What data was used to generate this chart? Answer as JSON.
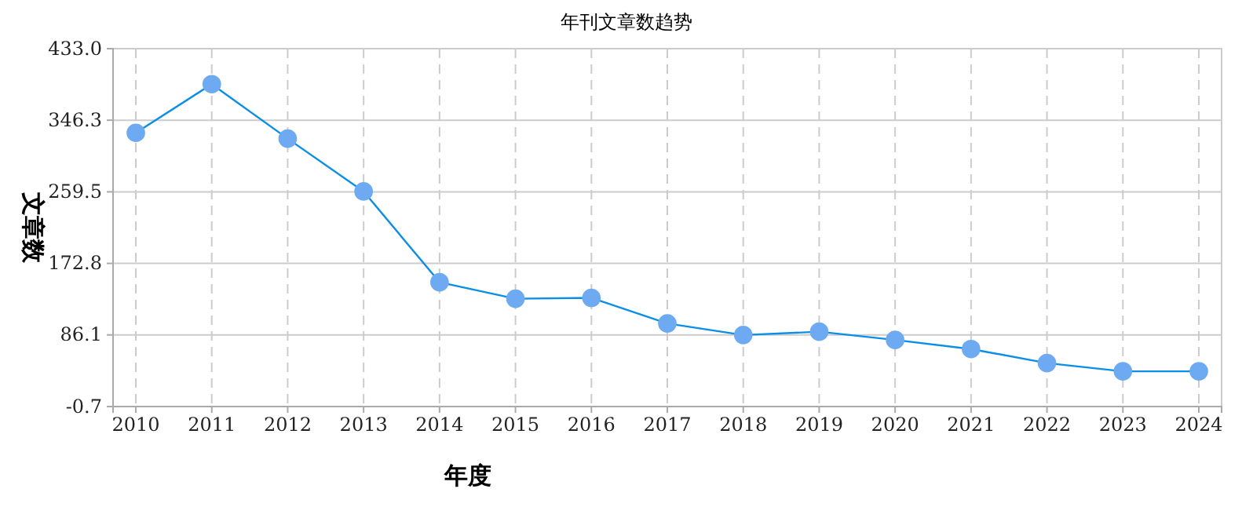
{
  "chart_data": {
    "type": "line",
    "title": "年刊文章数趋势",
    "xlabel": "年度",
    "ylabel": "文章数",
    "categories": [
      "2010",
      "2011",
      "2012",
      "2013",
      "2014",
      "2015",
      "2016",
      "2017",
      "2018",
      "2019",
      "2020",
      "2021",
      "2022",
      "2023",
      "2024"
    ],
    "series": [
      {
        "color": "#0a8ee8",
        "values": [
          331,
          390,
          324,
          260,
          150,
          130,
          131,
          100,
          86,
          90,
          80,
          69,
          52,
          42,
          42
        ]
      }
    ],
    "marker": "circle",
    "grid": true,
    "ylim": [
      -0.7,
      433.0
    ],
    "yticks": [
      {
        "value": -0.7,
        "label": "-0.7"
      },
      {
        "value": 86.1,
        "label": "86.1"
      },
      {
        "value": 172.8,
        "label": "172.8"
      },
      {
        "value": 259.5,
        "label": "259.5"
      },
      {
        "value": 346.3,
        "label": "346.3"
      },
      {
        "value": 433.0,
        "label": "433.0"
      }
    ]
  }
}
